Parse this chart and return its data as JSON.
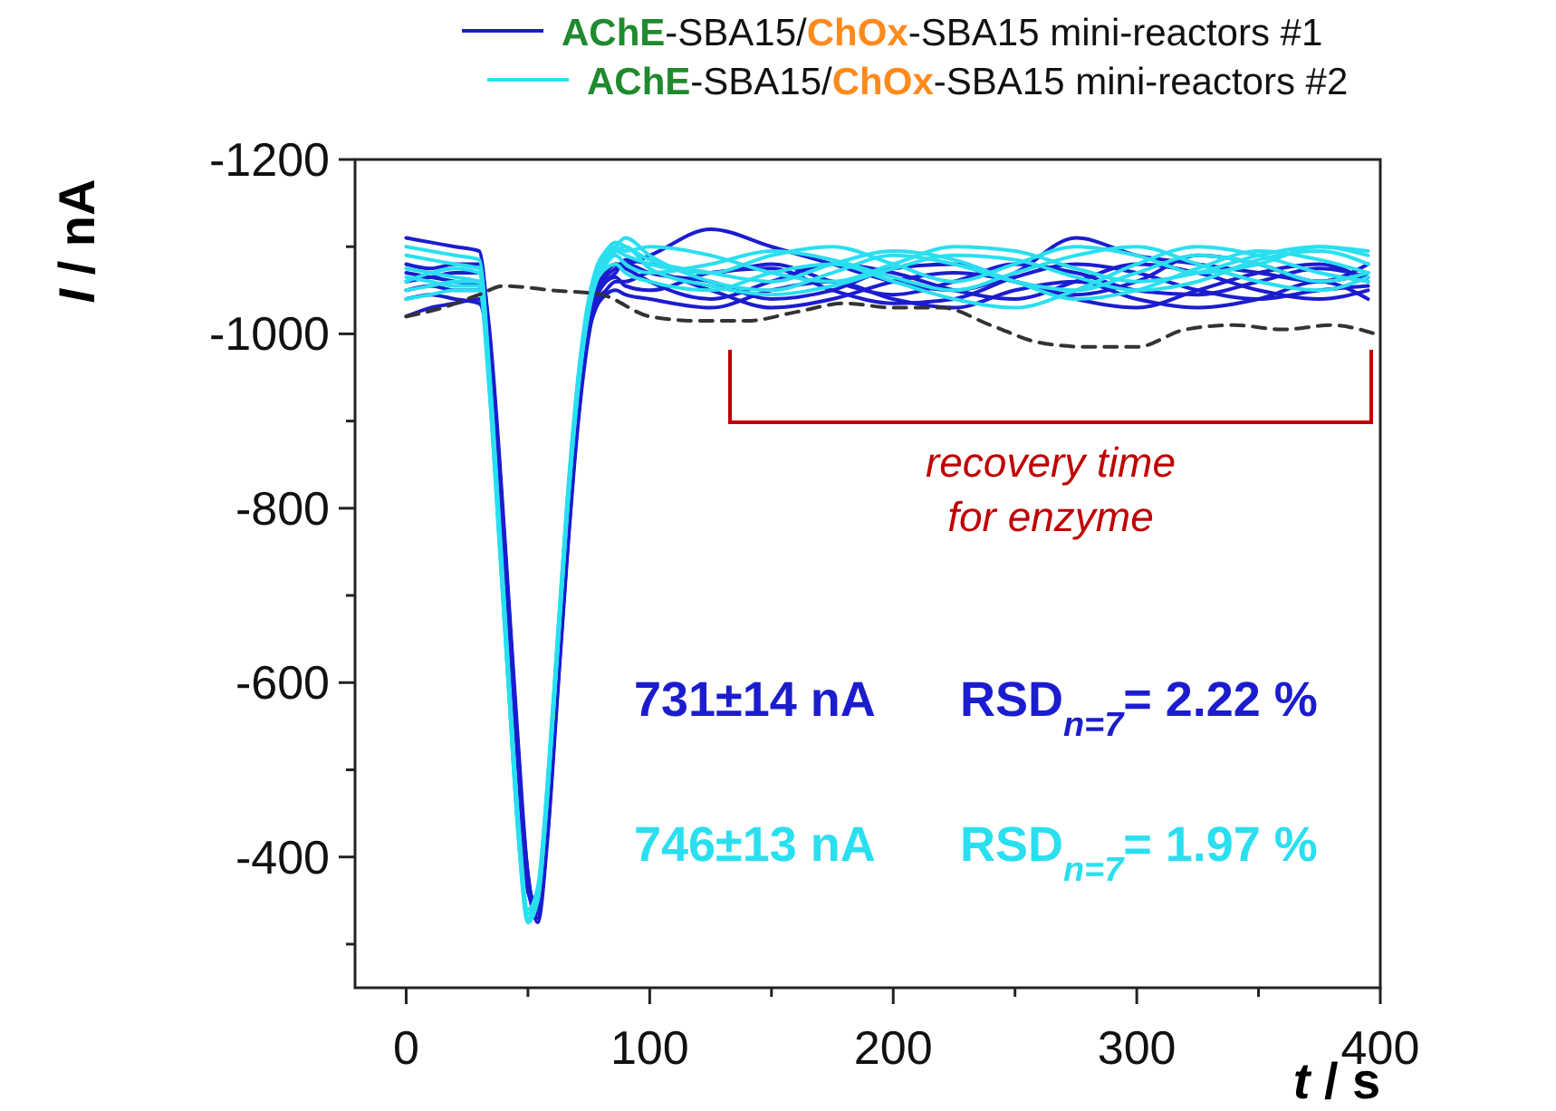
{
  "chart_data": {
    "type": "line",
    "xlabel": "t / s",
    "ylabel": "I / nA",
    "x": [
      0,
      10,
      20,
      30,
      34,
      38,
      42,
      46,
      50,
      54,
      58,
      62,
      66,
      70,
      74,
      78,
      82,
      86,
      90,
      100,
      125,
      150,
      175,
      200,
      225,
      250,
      275,
      300,
      325,
      350,
      375,
      395
    ],
    "xlim": [
      -21,
      400
    ],
    "xticks": [
      0,
      {
        "value": 50,
        "label": null
      },
      100,
      {
        "value": 150,
        "label": null
      },
      200,
      {
        "value": 250,
        "label": null
      },
      300,
      {
        "value": 350,
        "label": null
      },
      400
    ],
    "ylim": [
      -250,
      -1200
    ],
    "yticks": [
      {
        "value": -300,
        "label": null
      },
      -400,
      {
        "value": -500,
        "label": null
      },
      -600,
      {
        "value": -700,
        "label": null
      },
      -800,
      {
        "value": -900,
        "label": null
      },
      -1000,
      {
        "value": -1100,
        "label": null
      },
      -1200
    ],
    "grid": false,
    "legend": "top",
    "line_style": "solid",
    "marker": "none",
    "series": [
      {
        "name": "AChE-SBA15/ChOx-SBA15 mini-reactors #1",
        "color": "#1c1ccf",
        "values": [
          -1110,
          -1105,
          -1100,
          -1095,
          -1000,
          -850,
          -680,
          -510,
          -380,
          -325,
          -420,
          -580,
          -740,
          -880,
          -980,
          -1040,
          -1070,
          -1080,
          -1080,
          -1090,
          -1120,
          -1100,
          -1080,
          -1060,
          -1050,
          -1070,
          -1110,
          -1090,
          -1080,
          -1070,
          -1060,
          -1070
        ]
      },
      {
        "color": "#1c1ccf",
        "values": [
          -1060,
          -1065,
          -1070,
          -1070,
          -1000,
          -860,
          -690,
          -520,
          -370,
          -330,
          -430,
          -590,
          -750,
          -890,
          -990,
          -1050,
          -1070,
          -1080,
          -1075,
          -1060,
          -1040,
          -1060,
          -1080,
          -1070,
          -1050,
          -1040,
          -1060,
          -1080,
          -1070,
          -1050,
          -1040,
          -1050
        ]
      },
      {
        "color": "#1c1ccf",
        "values": [
          -1040,
          -1045,
          -1040,
          -1035,
          -980,
          -840,
          -670,
          -500,
          -360,
          -340,
          -440,
          -600,
          -760,
          -900,
          -990,
          -1030,
          -1045,
          -1050,
          -1045,
          -1040,
          -1030,
          -1050,
          -1060,
          -1040,
          -1030,
          -1050,
          -1060,
          -1040,
          -1030,
          -1040,
          -1060,
          -1040
        ]
      },
      {
        "color": "#1c1ccf",
        "values": [
          -1080,
          -1075,
          -1080,
          -1080,
          -1010,
          -870,
          -700,
          -530,
          -380,
          -335,
          -425,
          -585,
          -745,
          -885,
          -985,
          -1040,
          -1065,
          -1075,
          -1080,
          -1070,
          -1060,
          -1040,
          -1050,
          -1075,
          -1080,
          -1060,
          -1045,
          -1060,
          -1090,
          -1080,
          -1060,
          -1080
        ]
      },
      {
        "color": "#1c1ccf",
        "values": [
          -1020,
          -1030,
          -1035,
          -1040,
          -990,
          -860,
          -690,
          -520,
          -370,
          -340,
          -440,
          -600,
          -760,
          -900,
          -990,
          -1035,
          -1050,
          -1060,
          -1060,
          -1070,
          -1050,
          -1030,
          -1040,
          -1060,
          -1070,
          -1060,
          -1040,
          -1030,
          -1050,
          -1070,
          -1080,
          -1060
        ]
      },
      {
        "color": "#1c1ccf",
        "values": [
          -1070,
          -1065,
          -1060,
          -1055,
          -1000,
          -860,
          -690,
          -515,
          -365,
          -330,
          -430,
          -590,
          -750,
          -890,
          -985,
          -1040,
          -1060,
          -1070,
          -1085,
          -1080,
          -1070,
          -1080,
          -1060,
          -1045,
          -1060,
          -1080,
          -1070,
          -1050,
          -1045,
          -1060,
          -1075,
          -1065
        ]
      },
      {
        "color": "#1c1ccf",
        "values": [
          -1050,
          -1055,
          -1050,
          -1050,
          -990,
          -850,
          -680,
          -510,
          -370,
          -345,
          -445,
          -605,
          -765,
          -905,
          -995,
          -1045,
          -1060,
          -1065,
          -1055,
          -1050,
          -1070,
          -1075,
          -1050,
          -1035,
          -1040,
          -1065,
          -1080,
          -1070,
          -1050,
          -1040,
          -1050,
          -1055
        ]
      },
      {
        "name": "AChE-SBA15/ChOx-SBA15 mini-reactors #2",
        "color": "#29dff0",
        "values": [
          -1090,
          -1085,
          -1080,
          -1075,
          -960,
          -790,
          -610,
          -440,
          -335,
          -360,
          -480,
          -640,
          -800,
          -930,
          -1020,
          -1070,
          -1090,
          -1095,
          -1090,
          -1080,
          -1070,
          -1090,
          -1100,
          -1080,
          -1060,
          -1080,
          -1100,
          -1090,
          -1070,
          -1080,
          -1100,
          -1090
        ]
      },
      {
        "color": "#29dff0",
        "values": [
          -1060,
          -1070,
          -1075,
          -1070,
          -950,
          -780,
          -600,
          -430,
          -330,
          -355,
          -475,
          -635,
          -795,
          -925,
          -1015,
          -1065,
          -1085,
          -1100,
          -1110,
          -1090,
          -1060,
          -1050,
          -1070,
          -1090,
          -1080,
          -1060,
          -1050,
          -1070,
          -1090,
          -1080,
          -1060,
          -1070
        ]
      },
      {
        "color": "#29dff0",
        "values": [
          -1040,
          -1045,
          -1050,
          -1050,
          -940,
          -770,
          -595,
          -425,
          -325,
          -350,
          -470,
          -630,
          -790,
          -920,
          -1010,
          -1060,
          -1075,
          -1080,
          -1070,
          -1060,
          -1050,
          -1070,
          -1080,
          -1060,
          -1040,
          -1030,
          -1050,
          -1080,
          -1100,
          -1090,
          -1070,
          -1060
        ]
      },
      {
        "color": "#29dff0",
        "values": [
          -1075,
          -1070,
          -1065,
          -1060,
          -955,
          -785,
          -605,
          -435,
          -335,
          -360,
          -480,
          -640,
          -800,
          -930,
          -1020,
          -1070,
          -1090,
          -1100,
          -1095,
          -1100,
          -1090,
          -1070,
          -1060,
          -1080,
          -1100,
          -1095,
          -1075,
          -1060,
          -1070,
          -1090,
          -1100,
          -1095
        ]
      },
      {
        "color": "#29dff0",
        "values": [
          -1100,
          -1095,
          -1090,
          -1085,
          -965,
          -795,
          -615,
          -445,
          -340,
          -365,
          -485,
          -645,
          -805,
          -935,
          -1025,
          -1075,
          -1095,
          -1105,
          -1100,
          -1085,
          -1070,
          -1060,
          -1080,
          -1095,
          -1085,
          -1060,
          -1040,
          -1050,
          -1075,
          -1095,
          -1085,
          -1070
        ]
      },
      {
        "color": "#29dff0",
        "values": [
          -1050,
          -1055,
          -1060,
          -1060,
          -945,
          -775,
          -600,
          -430,
          -330,
          -350,
          -470,
          -630,
          -790,
          -920,
          -1010,
          -1060,
          -1080,
          -1090,
          -1080,
          -1070,
          -1080,
          -1095,
          -1085,
          -1065,
          -1050,
          -1070,
          -1090,
          -1100,
          -1080,
          -1060,
          -1050,
          -1065
        ]
      },
      {
        "color": "#29dff0",
        "values": [
          -1065,
          -1060,
          -1055,
          -1055,
          -950,
          -780,
          -600,
          -430,
          -325,
          -355,
          -475,
          -635,
          -795,
          -925,
          -1015,
          -1065,
          -1085,
          -1095,
          -1100,
          -1075,
          -1055,
          -1045,
          -1055,
          -1075,
          -1090,
          -1085,
          -1065,
          -1050,
          -1060,
          -1085,
          -1095,
          -1080
        ]
      },
      {
        "color": "#333333",
        "line_style": "dashed",
        "x": [
          0,
          15,
          30,
          40,
          60,
          80,
          100,
          120,
          140,
          160,
          180,
          200,
          220,
          240,
          260,
          280,
          300,
          320,
          340,
          360,
          380,
          398
        ],
        "values": [
          -1020,
          -1030,
          -1045,
          -1055,
          -1050,
          -1045,
          -1020,
          -1015,
          -1015,
          -1025,
          -1035,
          -1030,
          -1030,
          -1010,
          -990,
          -985,
          -985,
          -1005,
          -1010,
          -1005,
          -1010,
          -1000
        ]
      }
    ],
    "annotations": [
      "recovery time for enzyme",
      "731±14 nA  RSD$_{n=7}$= 2.22 %",
      "746±13 nA  RSD$_{n=7}$= 1.97 %"
    ]
  }
}
